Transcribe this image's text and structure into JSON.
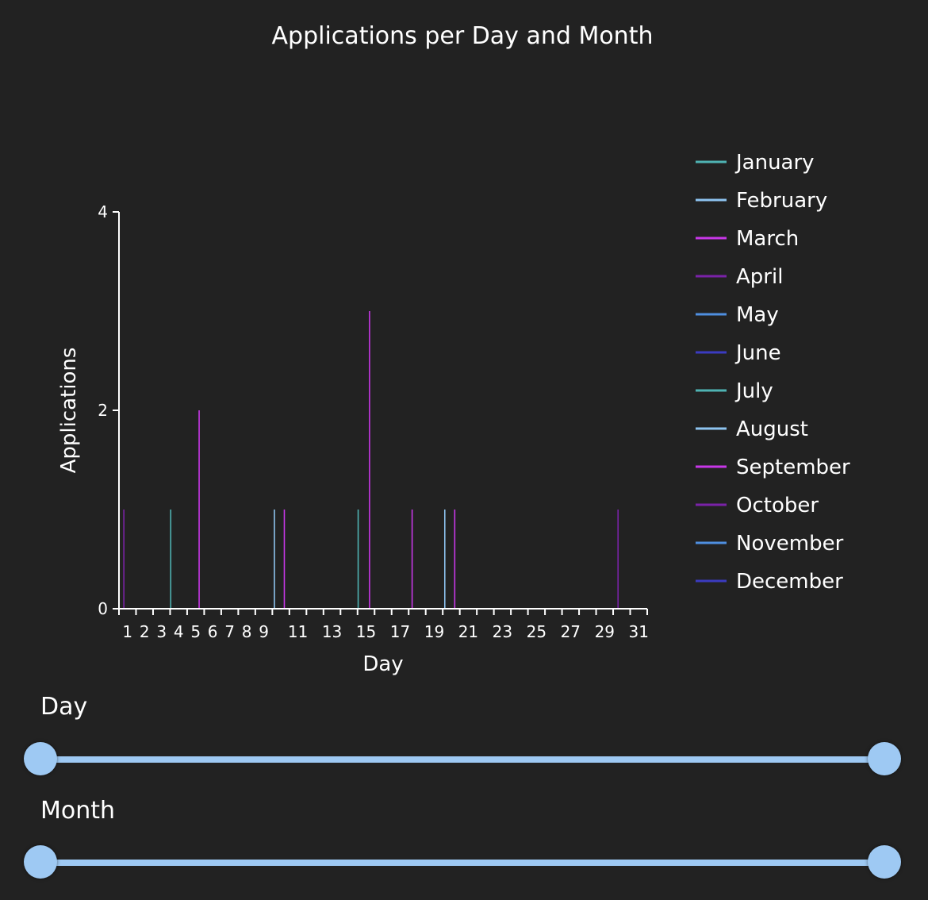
{
  "chart_data": {
    "type": "bar",
    "title": "Applications per Day and Month",
    "xlabel": "Day",
    "ylabel": "Applications",
    "ylim": [
      0,
      4
    ],
    "y_ticks": [
      0,
      2,
      4
    ],
    "x_tick_labels": [
      1,
      2,
      3,
      4,
      5,
      6,
      7,
      8,
      9,
      11,
      13,
      15,
      17,
      19,
      21,
      23,
      25,
      27,
      29,
      31
    ],
    "categories": [
      1,
      2,
      3,
      4,
      5,
      6,
      7,
      8,
      9,
      10,
      11,
      12,
      13,
      14,
      15,
      16,
      17,
      18,
      19,
      20,
      21,
      22,
      23,
      24,
      25,
      26,
      27,
      28,
      29,
      30,
      31
    ],
    "series": [
      {
        "name": "January",
        "color": "#4fb3b3",
        "values": [
          0,
          0,
          0,
          1,
          0,
          0,
          0,
          0,
          0,
          0,
          0,
          0,
          0,
          0,
          1,
          0,
          0,
          0,
          0,
          0,
          0,
          0,
          0,
          0,
          0,
          0,
          0,
          0,
          0,
          0,
          0
        ]
      },
      {
        "name": "February",
        "color": "#8ec4f0",
        "values": [
          0,
          0,
          0,
          0,
          0,
          0,
          0,
          0,
          0,
          1,
          0,
          0,
          0,
          0,
          0,
          0,
          0,
          0,
          0,
          1,
          0,
          0,
          0,
          0,
          0,
          0,
          0,
          0,
          0,
          0,
          0
        ]
      },
      {
        "name": "March",
        "color": "#c837e8",
        "values": [
          0,
          0,
          0,
          0,
          0,
          0,
          0,
          0,
          0,
          0,
          0,
          0,
          0,
          0,
          0,
          0,
          0,
          1,
          0,
          0,
          0,
          0,
          0,
          0,
          0,
          0,
          0,
          0,
          0,
          0,
          0
        ]
      },
      {
        "name": "April",
        "color": "#7a22a8",
        "values": [
          1,
          0,
          0,
          0,
          0,
          0,
          0,
          0,
          0,
          0,
          0,
          0,
          0,
          0,
          0,
          0,
          0,
          0,
          0,
          0,
          0,
          0,
          0,
          0,
          0,
          0,
          0,
          0,
          0,
          1,
          0
        ]
      },
      {
        "name": "May",
        "color": "#4f8fe0",
        "values": [
          0,
          0,
          0,
          0,
          0,
          0,
          0,
          0,
          0,
          0,
          0,
          0,
          0,
          0,
          0,
          0,
          0,
          0,
          0,
          0,
          0,
          0,
          0,
          0,
          0,
          0,
          0,
          0,
          0,
          0,
          0
        ]
      },
      {
        "name": "June",
        "color": "#3b3bc0",
        "values": [
          0,
          0,
          0,
          0,
          0,
          0,
          0,
          0,
          0,
          0,
          0,
          0,
          0,
          0,
          0,
          0,
          0,
          0,
          0,
          0,
          0,
          0,
          0,
          0,
          0,
          0,
          0,
          0,
          0,
          0,
          0
        ]
      },
      {
        "name": "July",
        "color": "#4fb3b3",
        "values": [
          0,
          0,
          0,
          0,
          0,
          0,
          0,
          0,
          0,
          0,
          0,
          0,
          0,
          0,
          0,
          0,
          0,
          0,
          0,
          0,
          0,
          0,
          0,
          0,
          0,
          0,
          0,
          0,
          0,
          0,
          0
        ]
      },
      {
        "name": "August",
        "color": "#8ec4f0",
        "values": [
          0,
          0,
          0,
          0,
          0,
          0,
          0,
          0,
          0,
          0,
          0,
          0,
          0,
          0,
          0,
          0,
          0,
          0,
          0,
          0,
          0,
          0,
          0,
          0,
          0,
          0,
          0,
          0,
          0,
          0,
          0
        ]
      },
      {
        "name": "September",
        "color": "#c837e8",
        "values": [
          0,
          0,
          0,
          0,
          2,
          0,
          0,
          0,
          0,
          1,
          0,
          0,
          0,
          0,
          3,
          0,
          0,
          0,
          0,
          1,
          0,
          0,
          0,
          0,
          0,
          0,
          0,
          0,
          0,
          0,
          0
        ]
      },
      {
        "name": "October",
        "color": "#7a22a8",
        "values": [
          0,
          0,
          0,
          0,
          0,
          0,
          0,
          0,
          0,
          0,
          0,
          0,
          0,
          0,
          0,
          0,
          0,
          0,
          0,
          0,
          0,
          0,
          0,
          0,
          0,
          0,
          0,
          0,
          0,
          0,
          0
        ]
      },
      {
        "name": "November",
        "color": "#4f8fe0",
        "values": [
          0,
          0,
          0,
          0,
          0,
          0,
          0,
          0,
          0,
          0,
          0,
          0,
          0,
          0,
          0,
          0,
          0,
          0,
          0,
          0,
          0,
          0,
          0,
          0,
          0,
          0,
          0,
          0,
          0,
          0,
          0
        ]
      },
      {
        "name": "December",
        "color": "#3b3bc0",
        "values": [
          0,
          0,
          0,
          0,
          0,
          0,
          0,
          0,
          0,
          0,
          0,
          0,
          0,
          0,
          0,
          0,
          0,
          0,
          0,
          0,
          0,
          0,
          0,
          0,
          0,
          0,
          0,
          0,
          0,
          0,
          0
        ]
      }
    ],
    "grid": false,
    "legend": "right"
  },
  "controls": {
    "day_label": "Day",
    "month_label": "Month",
    "day_range": [
      1,
      31
    ],
    "month_range": [
      1,
      12
    ]
  },
  "colors": {
    "background": "#222222",
    "slider": "#9ec9f3"
  }
}
